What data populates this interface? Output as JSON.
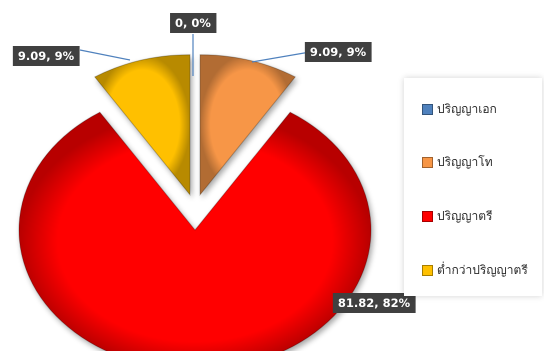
{
  "chart_data": {
    "type": "pie",
    "title": "",
    "categories": [
      "ปริญญาเอก",
      "ปริญญาโท",
      "ปริญญาตรี",
      "ต่ำกว่าปริญญาตรี"
    ],
    "values": [
      0,
      9.09,
      81.82,
      9.09
    ],
    "percent_labels": [
      "0%",
      "9%",
      "82%",
      "9%"
    ],
    "data_labels": [
      "0, 0%",
      "9.09, 9%",
      "81.82, 82%",
      "9.09, 9%"
    ],
    "colors": [
      "#4f81bd",
      "#f79646",
      "#ff0000",
      "#ffc000"
    ],
    "exploded": true,
    "legend_position": "right"
  }
}
